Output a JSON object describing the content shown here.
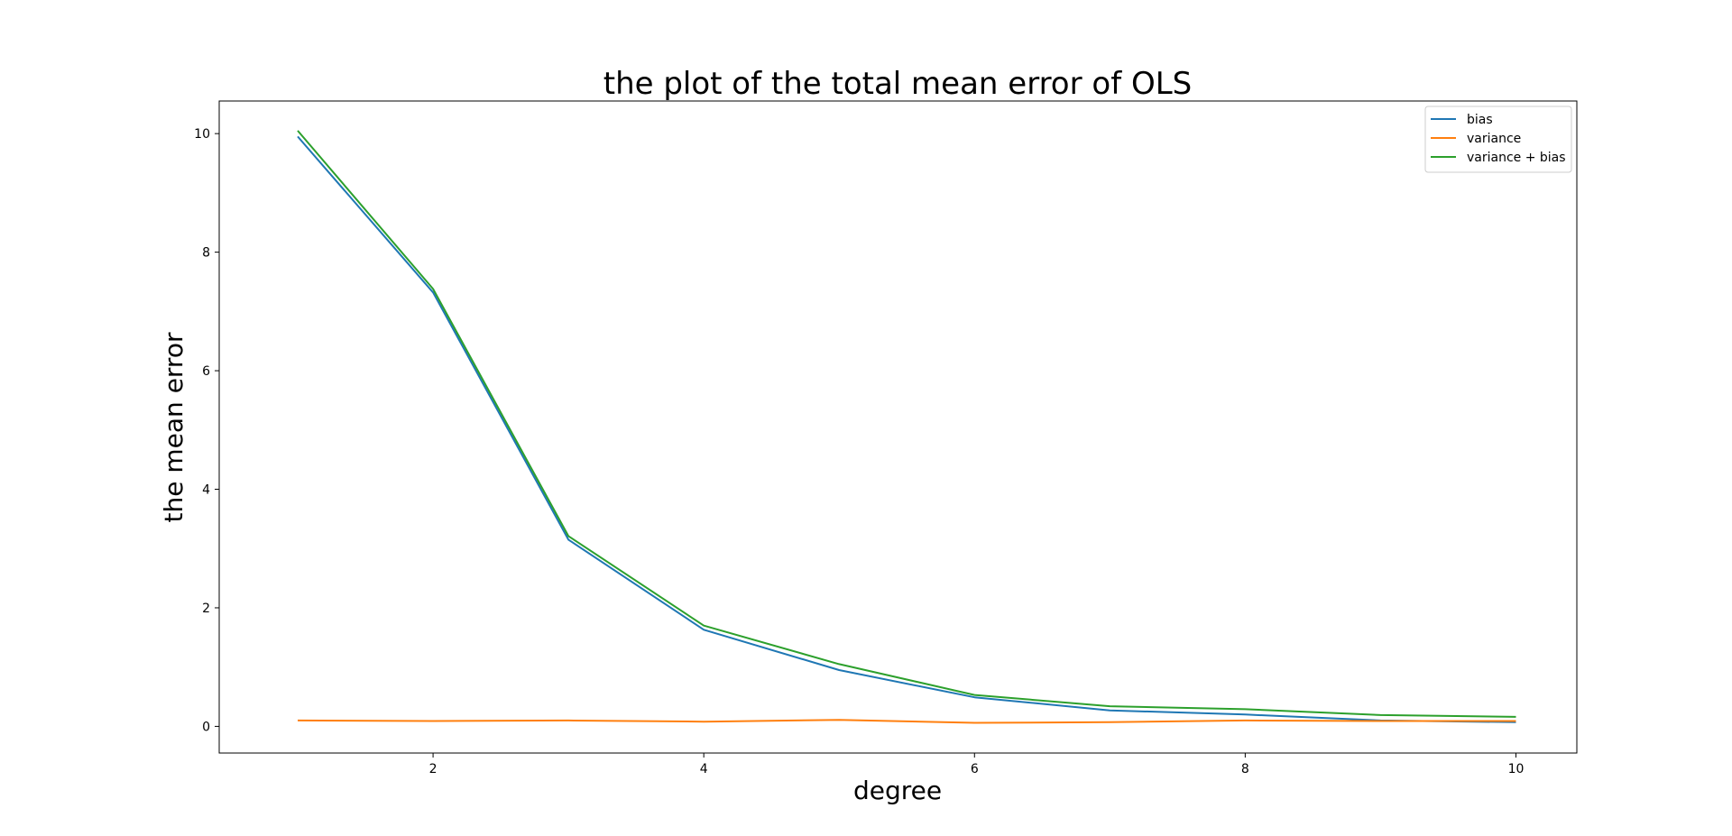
{
  "chart_data": {
    "type": "line",
    "title": "the plot of the total mean error of OLS",
    "xlabel": "degree",
    "ylabel": "the mean error",
    "x": [
      1,
      2,
      3,
      4,
      5,
      6,
      7,
      8,
      9,
      10
    ],
    "xlim": [
      0.42,
      10.45
    ],
    "ylim": [
      -0.45,
      10.55
    ],
    "xticks": [
      2,
      4,
      6,
      8,
      10
    ],
    "yticks": [
      0,
      2,
      4,
      6,
      8,
      10
    ],
    "grid": false,
    "legend_position": "top-right",
    "series": [
      {
        "name": "bias",
        "color": "#1f77b4",
        "values": [
          9.95,
          7.32,
          3.15,
          1.63,
          0.95,
          0.49,
          0.27,
          0.2,
          0.1,
          0.07
        ]
      },
      {
        "name": "variance",
        "color": "#ff7f0e",
        "values": [
          0.1,
          0.09,
          0.1,
          0.08,
          0.11,
          0.06,
          0.07,
          0.1,
          0.09,
          0.09
        ]
      },
      {
        "name": "variance + bias",
        "color": "#2ca02c",
        "values": [
          10.05,
          7.38,
          3.21,
          1.7,
          1.05,
          0.53,
          0.34,
          0.29,
          0.19,
          0.16
        ]
      }
    ]
  }
}
